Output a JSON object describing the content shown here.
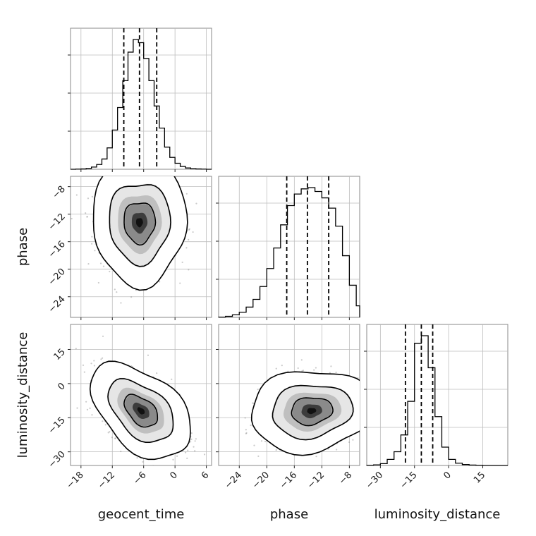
{
  "chart_data": {
    "type": "corner",
    "parameters": [
      "geocent_time",
      "phase",
      "luminosity_distance"
    ],
    "labels": {
      "bottom_row": [
        "geocent_time",
        "phase",
        "luminosity_distance"
      ],
      "left_column": [
        "phase",
        "luminosity_distance"
      ]
    },
    "ranges": {
      "geocent_time": [
        -20,
        7
      ],
      "phase": [
        -27,
        -6.5
      ],
      "luminosity_distance": [
        -36,
        26
      ]
    },
    "ticks": {
      "geocent_time": [
        -18,
        -12,
        -6,
        0,
        6
      ],
      "phase": [
        -24,
        -20,
        -16,
        -12,
        -8
      ],
      "luminosity_distance": [
        -30,
        -15,
        0,
        15
      ]
    },
    "tick_labels": {
      "geocent_time": [
        "−18",
        "−12",
        "−6",
        "0",
        "6"
      ],
      "phase": [
        "−24",
        "−20",
        "−16",
        "−12",
        "−8"
      ],
      "luminosity_distance": [
        "−30",
        "−15",
        "0",
        "15"
      ]
    },
    "quantiles": {
      "geocent_time": [
        -9.8,
        -6.8,
        -3.5
      ],
      "phase": [
        -17.1,
        -14.1,
        -11.0
      ],
      "luminosity_distance": [
        -19.0,
        -12.0,
        -7.0
      ]
    },
    "histograms": {
      "geocent_time": {
        "edges": [
          -20,
          -19,
          -18,
          -17,
          -16,
          -15,
          -14,
          -13,
          -12,
          -11,
          -10,
          -9,
          -8,
          -7,
          -6,
          -5,
          -4,
          -3,
          -2,
          -1,
          0,
          1,
          2,
          3,
          4,
          5,
          6,
          7
        ],
        "counts": [
          0,
          1,
          2,
          5,
          14,
          30,
          65,
          135,
          248,
          390,
          560,
          740,
          820,
          800,
          700,
          560,
          400,
          260,
          140,
          75,
          38,
          18,
          8,
          4,
          2,
          1,
          0
        ]
      },
      "phase": {
        "edges": [
          -27,
          -26,
          -25,
          -24,
          -23,
          -22,
          -21,
          -20,
          -19,
          -18,
          -17,
          -16,
          -15,
          -14,
          -13,
          -12,
          -11,
          -10,
          -9,
          -8,
          -7,
          -6.5
        ],
        "counts": [
          2,
          8,
          20,
          40,
          80,
          140,
          240,
          380,
          540,
          720,
          870,
          960,
          1000,
          1010,
          980,
          930,
          850,
          710,
          480,
          250,
          90
        ]
      },
      "luminosity_distance": {
        "edges": [
          -36,
          -33,
          -30,
          -27,
          -24,
          -21,
          -18,
          -15,
          -12,
          -9,
          -6,
          -3,
          0,
          3,
          6,
          9,
          12,
          15,
          18,
          21,
          24,
          26
        ],
        "counts": [
          1,
          4,
          12,
          40,
          90,
          200,
          420,
          800,
          850,
          640,
          320,
          120,
          40,
          15,
          6,
          3,
          1,
          0,
          0,
          0,
          0
        ]
      }
    },
    "joint_2d": [
      {
        "x": "geocent_time",
        "y": "phase",
        "center": [
          -6.8,
          -13.2
        ],
        "spread": [
          3.0,
          3.0
        ],
        "corr": 0.0
      },
      {
        "x": "geocent_time",
        "y": "luminosity_distance",
        "center": [
          -6.5,
          -12.0
        ],
        "spread": [
          3.2,
          7.0
        ],
        "corr": -0.45
      },
      {
        "x": "phase",
        "y": "luminosity_distance",
        "center": [
          -13.5,
          -12.0
        ],
        "spread": [
          3.0,
          6.0
        ],
        "corr": 0.1
      }
    ],
    "contour_levels": [
      "39%",
      "86%",
      "99%"
    ],
    "grid": true,
    "legend": "none"
  }
}
